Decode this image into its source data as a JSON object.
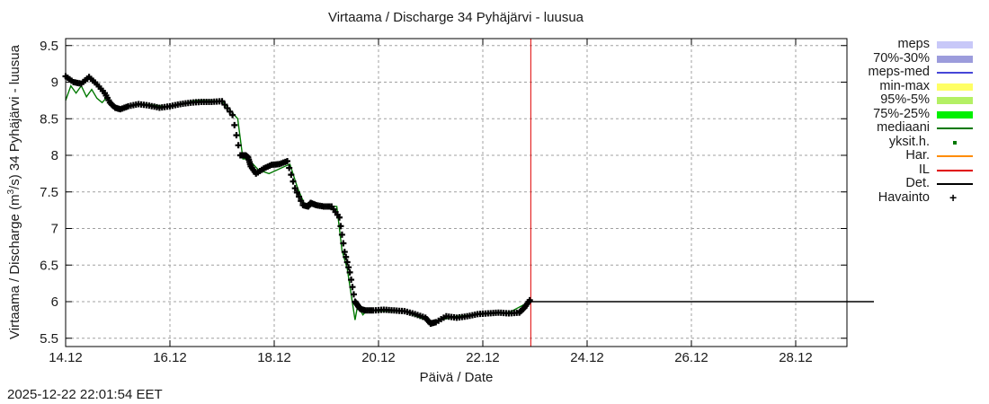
{
  "title": "Virtaama / Discharge  34 Pyhäjärvi - luusua",
  "timestamp": "2025-12-22 22:01:54 EET",
  "axes": {
    "xlabel": "Päivä / Date",
    "ylabel_pre": "Virtaama / Discharge (m",
    "ylabel_sup": "3",
    "ylabel_post": "/s)  34 Pyhäjärvi - luusua"
  },
  "legend": [
    {
      "label": "meps",
      "color": "#c8c8f8",
      "style": "band"
    },
    {
      "label": "70%-30%",
      "color": "#9c9cdc",
      "style": "band"
    },
    {
      "label": "meps-med",
      "color": "#4646d8",
      "style": "line"
    },
    {
      "label": "min-max",
      "color": "#ffff64",
      "style": "band"
    },
    {
      "label": "95%-5%",
      "color": "#b4f064",
      "style": "band"
    },
    {
      "label": "75%-25%",
      "color": "#00f000",
      "style": "band"
    },
    {
      "label": "mediaani",
      "color": "#007800",
      "style": "line"
    },
    {
      "label": "yksit.h.",
      "color": "#007800",
      "style": "dot"
    },
    {
      "label": "Har.",
      "color": "#ff8c00",
      "style": "line"
    },
    {
      "label": "IL",
      "color": "#e00000",
      "style": "line"
    },
    {
      "label": "Det.",
      "color": "#000000",
      "style": "line"
    },
    {
      "label": "Havainto",
      "color": "#000000",
      "style": "plus"
    }
  ],
  "chart_data": {
    "type": "line",
    "title": "Virtaama / Discharge  34 Pyhäjärvi - luusua",
    "xlabel": "Päivä / Date",
    "ylabel": "Virtaama / Discharge (m3/s)  34 Pyhäjärvi - luusua",
    "ylim": [
      5.4,
      9.6
    ],
    "xlim_days": [
      0,
      15.5
    ],
    "x_tick_labels": [
      "14.12",
      "16.12",
      "18.12",
      "20.12",
      "22.12",
      "24.12",
      "26.12",
      "28.12"
    ],
    "x_tick_days": [
      0,
      2,
      4,
      6,
      8,
      10,
      12,
      14
    ],
    "y_ticks": [
      5.5,
      6,
      6.5,
      7,
      7.5,
      8,
      8.5,
      9,
      9.5
    ],
    "grid": true,
    "legend_position": "right-outside",
    "forecast_start_day": 8.92,
    "series": [
      {
        "name": "Havainto",
        "style": "plus-markers",
        "color": "#000000",
        "x_days": [
          0.0,
          0.15,
          0.3,
          0.45,
          0.6,
          0.75,
          0.85,
          0.95,
          1.05,
          1.2,
          1.4,
          1.6,
          1.8,
          2.0,
          2.2,
          2.4,
          2.6,
          2.8,
          3.0,
          3.2,
          3.35,
          3.45,
          3.5,
          3.55,
          3.65,
          3.8,
          3.95,
          4.1,
          4.25,
          4.4,
          4.55,
          4.65,
          4.7,
          4.8,
          4.95,
          5.1,
          5.25,
          5.35,
          5.45,
          5.55,
          5.6,
          5.65,
          5.75,
          5.9,
          6.1,
          6.3,
          6.5,
          6.7,
          6.9,
          7.0,
          7.1,
          7.3,
          7.5,
          7.7,
          7.9,
          8.1,
          8.3,
          8.5,
          8.7,
          8.8,
          8.9
        ],
        "values": [
          9.08,
          9.0,
          8.98,
          9.07,
          8.97,
          8.85,
          8.72,
          8.65,
          8.63,
          8.67,
          8.7,
          8.68,
          8.65,
          8.67,
          8.7,
          8.72,
          8.73,
          8.73,
          8.74,
          8.55,
          8.0,
          8.0,
          7.97,
          7.85,
          7.75,
          7.82,
          7.87,
          7.88,
          7.92,
          7.55,
          7.32,
          7.3,
          7.35,
          7.32,
          7.3,
          7.3,
          7.15,
          6.68,
          6.4,
          6.0,
          5.95,
          5.9,
          5.88,
          5.88,
          5.89,
          5.88,
          5.87,
          5.83,
          5.78,
          5.7,
          5.72,
          5.8,
          5.78,
          5.8,
          5.83,
          5.84,
          5.85,
          5.84,
          5.85,
          5.92,
          6.02
        ]
      },
      {
        "name": "mediaani",
        "style": "line",
        "color": "#007800",
        "x_days": [
          0.0,
          0.1,
          0.2,
          0.3,
          0.4,
          0.5,
          0.6,
          0.7,
          0.8,
          0.9,
          1.0,
          1.2,
          1.5,
          2.0,
          2.5,
          3.0,
          3.3,
          3.4,
          3.5,
          3.7,
          3.9,
          4.3,
          4.45,
          4.6,
          4.8,
          5.2,
          5.3,
          5.4,
          5.55,
          5.6,
          5.7,
          5.8,
          6.0,
          6.5,
          7.0,
          7.5,
          8.0,
          8.5,
          8.9
        ],
        "values": [
          8.75,
          8.95,
          8.85,
          8.95,
          8.8,
          8.9,
          8.78,
          8.72,
          8.8,
          8.7,
          8.65,
          8.67,
          8.7,
          8.66,
          8.75,
          8.74,
          8.5,
          7.95,
          7.95,
          7.8,
          7.75,
          7.88,
          7.55,
          7.3,
          7.32,
          7.3,
          6.7,
          6.45,
          5.75,
          5.95,
          5.82,
          5.9,
          5.87,
          5.87,
          5.72,
          5.8,
          5.83,
          5.85,
          6.0
        ]
      },
      {
        "name": "Det.",
        "style": "line",
        "color": "#000000",
        "x_days": [
          8.92,
          15.5
        ],
        "values": [
          6.0,
          6.0
        ]
      },
      {
        "name": "IL",
        "style": "vertical-line",
        "color": "#e00000",
        "x_days": [
          8.92
        ],
        "values": []
      }
    ]
  }
}
